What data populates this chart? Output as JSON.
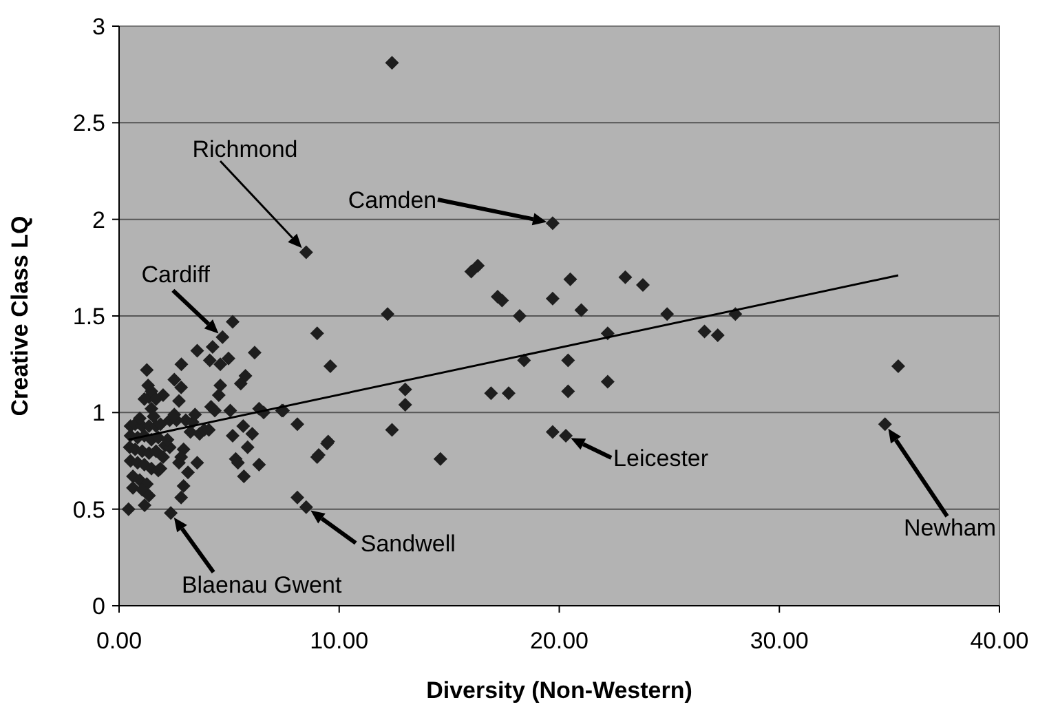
{
  "chart_data": {
    "type": "scatter",
    "xlabel": "Diversity (Non-Western)",
    "ylabel": "Creative Class LQ",
    "xlim": [
      0,
      40
    ],
    "xticks": [
      {
        "value": 0,
        "label": "0.00"
      },
      {
        "value": 10,
        "label": "10.00"
      },
      {
        "value": 20,
        "label": "20.00"
      },
      {
        "value": 30,
        "label": "30.00"
      },
      {
        "value": 40,
        "label": "40.00"
      }
    ],
    "ylim": [
      0,
      3
    ],
    "yticks": [
      0,
      0.5,
      1,
      1.5,
      2,
      2.5,
      3
    ],
    "grid": "y",
    "marker": "diamond",
    "series": [
      {
        "type": "scatter",
        "color": "#1e1e1e",
        "x": [
          19.7,
          20.5,
          19.7,
          23.0,
          23.8,
          21.0,
          24.9,
          28.0,
          22.2,
          26.6,
          27.2,
          20.4,
          18.4,
          22.2,
          20.4,
          35.4,
          19.7,
          20.3,
          34.8,
          12.2,
          18.2,
          9.0,
          9.6,
          13.0,
          13.0,
          16.9,
          17.7,
          7.4,
          8.1,
          12.4,
          9.5,
          9.0,
          14.6,
          8.1,
          8.5,
          12.4,
          8.5,
          16.3,
          16.0,
          17.2,
          17.4,
          0.43,
          1.16,
          2.35,
          5.16,
          4.7,
          4.25,
          3.55,
          4.12,
          4.6,
          4.97,
          6.16,
          2.83,
          1.26,
          1.32,
          2.51,
          2.82,
          5.74,
          5.53,
          2.0,
          2.72,
          1.36,
          1.47,
          4.6,
          4.53,
          4.18,
          4.35,
          5.05,
          6.36,
          6.57,
          7.45,
          9.07,
          9.45,
          5.16,
          5.64,
          6.05,
          5.84,
          5.3,
          5.4,
          5.67,
          6.36,
          2.3,
          2.61,
          3.03,
          3.34,
          3.24,
          3.66,
          3.87,
          4.08,
          2.09,
          2.3,
          2.93,
          2.82,
          2.72,
          3.13,
          2.93,
          2.82,
          3.55,
          0.52,
          0.73,
          1.05,
          1.36,
          1.68,
          1.88,
          0.52,
          0.84,
          1.15,
          1.47,
          1.78,
          0.48,
          0.73,
          1.05,
          1.36,
          1.68,
          0.52,
          0.84,
          1.15,
          1.47,
          1.78,
          0.63,
          0.94,
          1.26,
          0.63,
          1.05,
          1.36,
          2.2,
          2.0,
          1.88,
          1.15,
          1.47,
          1.68,
          0.94,
          1.57,
          2.51,
          3.45
        ],
        "values": [
          1.98,
          1.69,
          1.59,
          1.7,
          1.66,
          1.53,
          1.51,
          1.51,
          1.41,
          1.42,
          1.4,
          1.27,
          1.27,
          1.16,
          1.11,
          1.24,
          0.9,
          0.88,
          0.94,
          1.51,
          1.5,
          1.41,
          1.24,
          1.12,
          1.04,
          1.1,
          1.1,
          1.01,
          0.94,
          0.91,
          0.85,
          0.77,
          0.76,
          0.56,
          0.51,
          2.81,
          1.83,
          1.76,
          1.73,
          1.6,
          1.58,
          0.5,
          0.52,
          0.48,
          1.47,
          1.39,
          1.34,
          1.32,
          1.27,
          1.25,
          1.28,
          1.31,
          1.25,
          1.22,
          1.14,
          1.17,
          1.13,
          1.19,
          1.15,
          1.09,
          1.06,
          1.08,
          1.02,
          1.14,
          1.09,
          1.03,
          1.01,
          1.01,
          1.02,
          1.0,
          1.01,
          0.78,
          0.84,
          0.88,
          0.93,
          0.89,
          0.82,
          0.76,
          0.74,
          0.67,
          0.73,
          0.96,
          0.96,
          0.96,
          0.95,
          0.9,
          0.89,
          0.91,
          0.91,
          0.83,
          0.82,
          0.81,
          0.77,
          0.74,
          0.69,
          0.62,
          0.56,
          0.74,
          0.93,
          0.94,
          0.93,
          0.93,
          0.93,
          0.94,
          0.88,
          0.87,
          0.88,
          0.86,
          0.87,
          0.82,
          0.81,
          0.8,
          0.79,
          0.8,
          0.75,
          0.74,
          0.73,
          0.71,
          0.7,
          0.67,
          0.65,
          0.63,
          0.61,
          0.6,
          0.57,
          0.86,
          0.77,
          0.71,
          1.07,
          1.11,
          1.07,
          0.97,
          0.98,
          0.99,
          0.99
        ]
      },
      {
        "type": "line",
        "color": "#000000",
        "x": [
          0.43,
          35.4
        ],
        "values": [
          0.86,
          1.71
        ],
        "marker": "none",
        "line_style": "solid"
      }
    ],
    "annotations": [
      "Richmond",
      "Camden",
      {
        "text": "Cardiff",
        "x": 4.7,
        "y": 1.39
      },
      {
        "text": "Leicester",
        "x": 20.3,
        "y": 0.88
      },
      "Newham",
      {
        "text": "Sandwell",
        "x": 8.5,
        "y": 0.51
      },
      {
        "text": "Blaenau Gwent",
        "x": 2.35,
        "y": 0.48
      }
    ]
  }
}
